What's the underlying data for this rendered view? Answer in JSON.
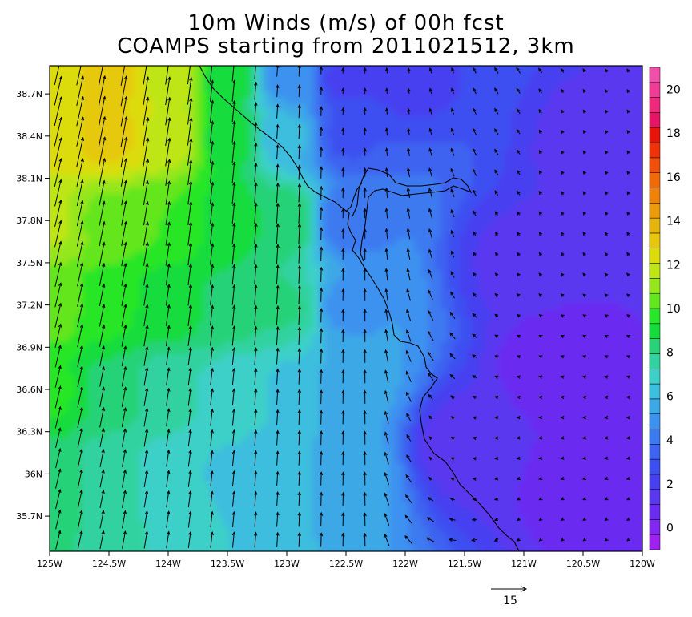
{
  "chart_data": {
    "type": "heatmap",
    "title": "10m Winds (m/s) of 00h fcst",
    "subtitle": "COAMPS starting from 2011021512, 3km",
    "x_ticks": [
      "125W",
      "124.5W",
      "124W",
      "123.5W",
      "123W",
      "122.5W",
      "122W",
      "121.5W",
      "121W",
      "120.5W",
      "120W"
    ],
    "x_tick_values": [
      -125,
      -124.5,
      -124,
      -123.5,
      -123,
      -122.5,
      -122,
      -121.5,
      -121,
      -120.5,
      -120
    ],
    "y_ticks": [
      "35.7N",
      "36N",
      "36.3N",
      "36.6N",
      "36.9N",
      "37.2N",
      "37.5N",
      "37.8N",
      "38.1N",
      "38.4N",
      "38.7N"
    ],
    "y_tick_values": [
      35.7,
      36.0,
      36.3,
      36.6,
      36.9,
      37.2,
      37.5,
      37.8,
      38.1,
      38.4,
      38.7
    ],
    "xlim": [
      -125,
      -120
    ],
    "ylim": [
      35.45,
      38.9
    ],
    "colorbar": {
      "min": -1,
      "max": 21,
      "labels": [
        "0",
        "2",
        "4",
        "6",
        "8",
        "10",
        "12",
        "14",
        "16",
        "18",
        "20"
      ],
      "label_values": [
        0,
        2,
        4,
        6,
        8,
        10,
        12,
        14,
        16,
        18,
        20
      ],
      "colors": [
        "#a020f0",
        "#8228f0",
        "#6a2cf0",
        "#5a38f0",
        "#4640f0",
        "#3c50f0",
        "#3c64f0",
        "#3c7af0",
        "#3c92f0",
        "#3ca8e6",
        "#3cbede",
        "#3cd0c8",
        "#32d2a0",
        "#28d278",
        "#14dc3c",
        "#28e628",
        "#64e61e",
        "#96e61e",
        "#bee614",
        "#dcdc0a",
        "#e6c80a",
        "#e6b40a",
        "#ec9c0a",
        "#f0820a",
        "#f06a0a",
        "#f0500a",
        "#f0320a",
        "#e6140a",
        "#e61464",
        "#f0287c",
        "#f03c96",
        "#f050aa"
      ]
    },
    "reference_vector": {
      "value": 15,
      "label": "15"
    },
    "speed_field_m_s": [
      {
        "lon": -125.0,
        "lat": 38.8,
        "speed": 12.5
      },
      {
        "lon": -124.5,
        "lat": 38.8,
        "speed": 13.0
      },
      {
        "lon": -124.0,
        "lat": 38.8,
        "speed": 12.0
      },
      {
        "lon": -123.5,
        "lat": 38.8,
        "speed": 9.0
      },
      {
        "lon": -123.0,
        "lat": 38.8,
        "speed": 5.0
      },
      {
        "lon": -122.5,
        "lat": 38.8,
        "speed": 2.3
      },
      {
        "lon": -122.0,
        "lat": 38.8,
        "speed": 2.2
      },
      {
        "lon": -125.0,
        "lat": 38.4,
        "speed": 12.5
      },
      {
        "lon": -124.5,
        "lat": 38.4,
        "speed": 13.0
      },
      {
        "lon": -124.0,
        "lat": 38.4,
        "speed": 12.0
      },
      {
        "lon": -123.5,
        "lat": 38.4,
        "speed": 9.0
      },
      {
        "lon": -123.0,
        "lat": 38.4,
        "speed": 6.0
      },
      {
        "lon": -122.5,
        "lat": 38.4,
        "speed": 3.0
      },
      {
        "lon": -125.0,
        "lat": 37.8,
        "speed": 11.5
      },
      {
        "lon": -124.5,
        "lat": 37.8,
        "speed": 10.5
      },
      {
        "lon": -124.0,
        "lat": 37.8,
        "speed": 10.0
      },
      {
        "lon": -123.5,
        "lat": 37.8,
        "speed": 9.0
      },
      {
        "lon": -123.0,
        "lat": 37.8,
        "speed": 8.5
      },
      {
        "lon": -122.5,
        "lat": 37.8,
        "speed": 4.0
      },
      {
        "lon": -125.0,
        "lat": 37.2,
        "speed": 10.5
      },
      {
        "lon": -124.5,
        "lat": 37.2,
        "speed": 9.5
      },
      {
        "lon": -124.0,
        "lat": 37.2,
        "speed": 9.0
      },
      {
        "lon": -123.5,
        "lat": 37.2,
        "speed": 8.5
      },
      {
        "lon": -123.0,
        "lat": 37.2,
        "speed": 8.0
      },
      {
        "lon": -122.5,
        "lat": 37.2,
        "speed": 5.0
      },
      {
        "lon": -125.0,
        "lat": 36.6,
        "speed": 9.5
      },
      {
        "lon": -124.5,
        "lat": 36.6,
        "speed": 8.5
      },
      {
        "lon": -124.0,
        "lat": 36.6,
        "speed": 7.5
      },
      {
        "lon": -123.5,
        "lat": 36.6,
        "speed": 7.0
      },
      {
        "lon": -123.0,
        "lat": 36.6,
        "speed": 6.5
      },
      {
        "lon": -122.5,
        "lat": 36.6,
        "speed": 5.5
      },
      {
        "lon": -125.0,
        "lat": 36.0,
        "speed": 8.5
      },
      {
        "lon": -124.5,
        "lat": 36.0,
        "speed": 7.5
      },
      {
        "lon": -124.0,
        "lat": 36.0,
        "speed": 7.0
      },
      {
        "lon": -123.5,
        "lat": 36.0,
        "speed": 6.5
      },
      {
        "lon": -123.0,
        "lat": 36.0,
        "speed": 6.0
      },
      {
        "lon": -122.5,
        "lat": 36.0,
        "speed": 5.5
      },
      {
        "lon": -121.0,
        "lat": 37.5,
        "speed": 1.5
      },
      {
        "lon": -120.7,
        "lat": 36.8,
        "speed": 0.5
      },
      {
        "lon": -120.5,
        "lat": 35.9,
        "speed": 0.7
      },
      {
        "lon": -121.5,
        "lat": 36.2,
        "speed": 1.2
      },
      {
        "lon": -120.3,
        "lat": 38.3,
        "speed": 1.3
      }
    ]
  }
}
